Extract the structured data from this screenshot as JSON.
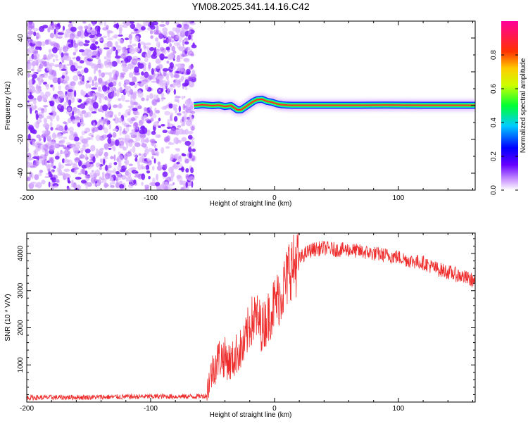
{
  "title": "YM08.2025.341.14.16.C42",
  "chart_data": [
    {
      "type": "heatmap",
      "name": "spectrogram",
      "xlabel": "Height of straight line (km)",
      "ylabel": "Frequency (Hz)",
      "xlim": [
        -200,
        162
      ],
      "ylim": [
        -50,
        50
      ],
      "xticks": [
        -200,
        -100,
        0,
        100
      ],
      "xtick_labels": [
        "-200",
        "-100",
        "0",
        "100"
      ],
      "yticks": [
        -40,
        -20,
        0,
        20,
        40
      ],
      "ytick_labels": [
        "-40",
        "-20",
        "0",
        "20",
        "40"
      ],
      "noise_region_x": [
        -200,
        -65
      ],
      "signal_track": {
        "x": [
          -65,
          -58,
          -50,
          -45,
          -40,
          -35,
          -30,
          -27,
          -24,
          -20,
          -17,
          -14,
          -10,
          -6,
          -2,
          2,
          6,
          10,
          14,
          30,
          60,
          90,
          120,
          162
        ],
        "freq": [
          0,
          0.5,
          0,
          0.3,
          -0.5,
          0,
          -2.5,
          -2.5,
          -1,
          1,
          2.5,
          3.5,
          3.8,
          2.5,
          2,
          1,
          0.5,
          0.3,
          0.2,
          0.2,
          0.2,
          0.3,
          0.2,
          0.2
        ]
      }
    },
    {
      "type": "line",
      "name": "snr",
      "xlabel": "Height of straight line (km)",
      "ylabel": "SNR (10 * V/V)",
      "xlim": [
        -200,
        162
      ],
      "ylim": [
        0,
        4550
      ],
      "xticks": [
        -200,
        -100,
        0,
        100
      ],
      "xtick_labels": [
        "-200",
        "-100",
        "0",
        "100"
      ],
      "yticks": [
        1000,
        2000,
        3000,
        4000
      ],
      "ytick_labels": [
        "1000",
        "2000",
        "3000",
        "4000"
      ],
      "color": "#ee2d2d",
      "series": [
        {
          "name": "SNR",
          "x": [
            -200,
            -150,
            -100,
            -65,
            -55,
            -52,
            -50,
            -45,
            -40,
            -35,
            -30,
            -25,
            -20,
            -15,
            -10,
            -5,
            0,
            5,
            10,
            12,
            15,
            18,
            20,
            25,
            30,
            40,
            50,
            60,
            70,
            80,
            90,
            100,
            110,
            120,
            130,
            140,
            150,
            162
          ],
          "y": [
            120,
            130,
            150,
            150,
            170,
            700,
            850,
            1200,
            1200,
            1050,
            1350,
            1450,
            2100,
            2300,
            2000,
            2300,
            2650,
            2900,
            3300,
            3700,
            3600,
            3800,
            3850,
            4000,
            4100,
            4150,
            4100,
            4100,
            4050,
            4000,
            3950,
            3900,
            3800,
            3750,
            3600,
            3500,
            3400,
            3250
          ]
        }
      ]
    },
    {
      "type": "colorbar",
      "name": "amplitude-colorbar",
      "label": "Normalized spectral amplitude",
      "range": [
        0,
        1
      ],
      "ticks": [
        0,
        0.2,
        0.4,
        0.6,
        0.8
      ],
      "tick_labels": [
        "0.0",
        "0.2",
        "0.4",
        "0.6",
        "0.8"
      ],
      "stops": [
        {
          "v": 0.0,
          "color": "#ffffff"
        },
        {
          "v": 0.06,
          "color": "#cc99ff"
        },
        {
          "v": 0.15,
          "color": "#6600ff"
        },
        {
          "v": 0.25,
          "color": "#0000ff"
        },
        {
          "v": 0.38,
          "color": "#00ccff"
        },
        {
          "v": 0.5,
          "color": "#00ff33"
        },
        {
          "v": 0.62,
          "color": "#ccff00"
        },
        {
          "v": 0.72,
          "color": "#ffcc00"
        },
        {
          "v": 0.82,
          "color": "#ff3300"
        },
        {
          "v": 1.0,
          "color": "#ff0099"
        }
      ]
    }
  ]
}
